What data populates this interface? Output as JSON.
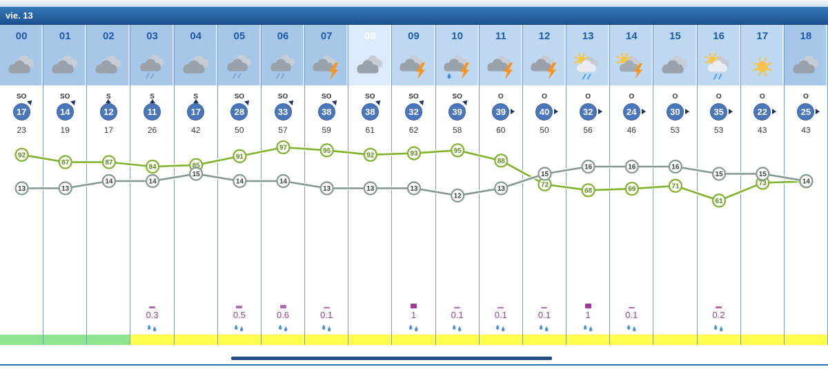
{
  "title_bar": {
    "day_label": "vie. 13"
  },
  "columns": [
    {
      "hour": "00",
      "bg": "night",
      "icon": "cloudy",
      "icon_label": "cloudy",
      "wind_dir": "SO",
      "wind_speed": "17",
      "gust": "23",
      "humidity": 92,
      "temp": 13,
      "precip": "",
      "strip": "green"
    },
    {
      "hour": "01",
      "bg": "night",
      "icon": "cloudy",
      "icon_label": "cloudy",
      "wind_dir": "SO",
      "wind_speed": "14",
      "gust": "19",
      "humidity": 87,
      "temp": 13,
      "precip": "",
      "strip": "green"
    },
    {
      "hour": "02",
      "bg": "night",
      "icon": "cloudy",
      "icon_label": "cloudy",
      "wind_dir": "S",
      "wind_speed": "12",
      "gust": "17",
      "humidity": 87,
      "temp": 14,
      "precip": "",
      "strip": "green"
    },
    {
      "hour": "03",
      "bg": "night",
      "icon": "rain",
      "icon_label": "cloudy-rain",
      "wind_dir": "S",
      "wind_speed": "11",
      "gust": "26",
      "humidity": 84,
      "temp": 14,
      "precip": "0.3",
      "strip": "yellow"
    },
    {
      "hour": "04",
      "bg": "night",
      "icon": "cloudy",
      "icon_label": "cloudy",
      "wind_dir": "S",
      "wind_speed": "17",
      "gust": "42",
      "humidity": 85,
      "temp": 15,
      "precip": "",
      "strip": "yellow"
    },
    {
      "hour": "05",
      "bg": "night",
      "icon": "rain",
      "icon_label": "cloudy-rain",
      "wind_dir": "SO",
      "wind_speed": "28",
      "gust": "50",
      "humidity": 91,
      "temp": 14,
      "precip": "0.5",
      "strip": "yellow"
    },
    {
      "hour": "06",
      "bg": "night",
      "icon": "rain",
      "icon_label": "cloudy-rain",
      "wind_dir": "SO",
      "wind_speed": "33",
      "gust": "57",
      "humidity": 97,
      "temp": 14,
      "precip": "0.6",
      "strip": "yellow"
    },
    {
      "hour": "07",
      "bg": "night",
      "icon": "storm",
      "icon_label": "storm",
      "wind_dir": "SO",
      "wind_speed": "38",
      "gust": "59",
      "humidity": 95,
      "temp": 13,
      "precip": "0.1",
      "strip": "yellow"
    },
    {
      "hour": "08",
      "bg": "current",
      "icon": "cloudy",
      "icon_label": "cloudy",
      "wind_dir": "SO",
      "wind_speed": "38",
      "gust": "61",
      "humidity": 92,
      "temp": 13,
      "precip": "",
      "strip": "yellow"
    },
    {
      "hour": "09",
      "bg": "day",
      "icon": "storm",
      "icon_label": "storm",
      "wind_dir": "SO",
      "wind_speed": "32",
      "gust": "62",
      "humidity": 93,
      "temp": 13,
      "precip": "1",
      "strip": "yellow"
    },
    {
      "hour": "10",
      "bg": "day",
      "icon": "storm-rain",
      "icon_label": "storm-rain",
      "wind_dir": "SO",
      "wind_speed": "39",
      "gust": "58",
      "humidity": 95,
      "temp": 12,
      "precip": "0.1",
      "strip": "yellow"
    },
    {
      "hour": "11",
      "bg": "day",
      "icon": "storm",
      "icon_label": "storm",
      "wind_dir": "O",
      "wind_speed": "39",
      "gust": "60",
      "humidity": 88,
      "temp": 13,
      "precip": "0.1",
      "strip": "yellow"
    },
    {
      "hour": "12",
      "bg": "day",
      "icon": "storm",
      "icon_label": "storm",
      "wind_dir": "O",
      "wind_speed": "40",
      "gust": "50",
      "humidity": 72,
      "temp": 15,
      "precip": "0.1",
      "strip": "yellow"
    },
    {
      "hour": "13",
      "bg": "day",
      "icon": "sun-rain",
      "icon_label": "sun-clouds-rain",
      "wind_dir": "O",
      "wind_speed": "32",
      "gust": "56",
      "humidity": 68,
      "temp": 16,
      "precip": "1",
      "strip": "yellow"
    },
    {
      "hour": "14",
      "bg": "day",
      "icon": "sun-storm",
      "icon_label": "sun-clouds-storm",
      "wind_dir": "O",
      "wind_speed": "24",
      "gust": "46",
      "humidity": 69,
      "temp": 16,
      "precip": "0.1",
      "strip": "yellow"
    },
    {
      "hour": "15",
      "bg": "day",
      "icon": "cloudy",
      "icon_label": "cloudy",
      "wind_dir": "O",
      "wind_speed": "30",
      "gust": "53",
      "humidity": 71,
      "temp": 16,
      "precip": "",
      "strip": "yellow"
    },
    {
      "hour": "16",
      "bg": "day",
      "icon": "sun-rain",
      "icon_label": "sun-clouds-rain",
      "wind_dir": "O",
      "wind_speed": "35",
      "gust": "53",
      "humidity": 61,
      "temp": 15,
      "precip": "0.2",
      "strip": "yellow"
    },
    {
      "hour": "17",
      "bg": "day",
      "icon": "sun",
      "icon_label": "sunny",
      "wind_dir": "O",
      "wind_speed": "22",
      "gust": "43",
      "humidity": 73,
      "temp": 15,
      "precip": "",
      "strip": "yellow"
    },
    {
      "hour": "18",
      "bg": "night",
      "icon": "cloudy",
      "icon_label": "cloudy",
      "wind_dir": "O",
      "wind_speed": "25",
      "gust": "43",
      "humidity": 74,
      "temp": 14,
      "precip": "",
      "strip": "yellow"
    }
  ],
  "chart_data": {
    "type": "line",
    "x": [
      "00",
      "01",
      "02",
      "03",
      "04",
      "05",
      "06",
      "07",
      "08",
      "09",
      "10",
      "11",
      "12",
      "13",
      "14",
      "15",
      "16",
      "17",
      "18"
    ],
    "series": [
      {
        "name": "humidity_pct",
        "color": "#7fb22a",
        "values": [
          92,
          87,
          87,
          84,
          85,
          91,
          97,
          95,
          92,
          93,
          95,
          88,
          72,
          68,
          69,
          71,
          61,
          73,
          74
        ]
      },
      {
        "name": "temperature_c",
        "color": "#84988f",
        "values": [
          13,
          13,
          14,
          14,
          15,
          14,
          14,
          13,
          13,
          13,
          12,
          13,
          15,
          16,
          16,
          16,
          15,
          15,
          14
        ]
      }
    ],
    "legend_position": "none",
    "grid": false
  },
  "colors": {
    "humidity_line": "#7fb22a",
    "humidity_text": "#5f8c1d",
    "temperature_line": "#84988f",
    "temperature_text": "#37443e",
    "wind_circle": "#4a76bc",
    "precip_text": "#993d99",
    "precip_bar_small": "#b06ab0",
    "precip_bar_large": "#993d99",
    "strip_green": "#8fe58f",
    "strip_yellow": "#ffff4d",
    "bolt": "#f59422",
    "sun": "#f9c73e",
    "rain_drop": "#4a90d9"
  }
}
